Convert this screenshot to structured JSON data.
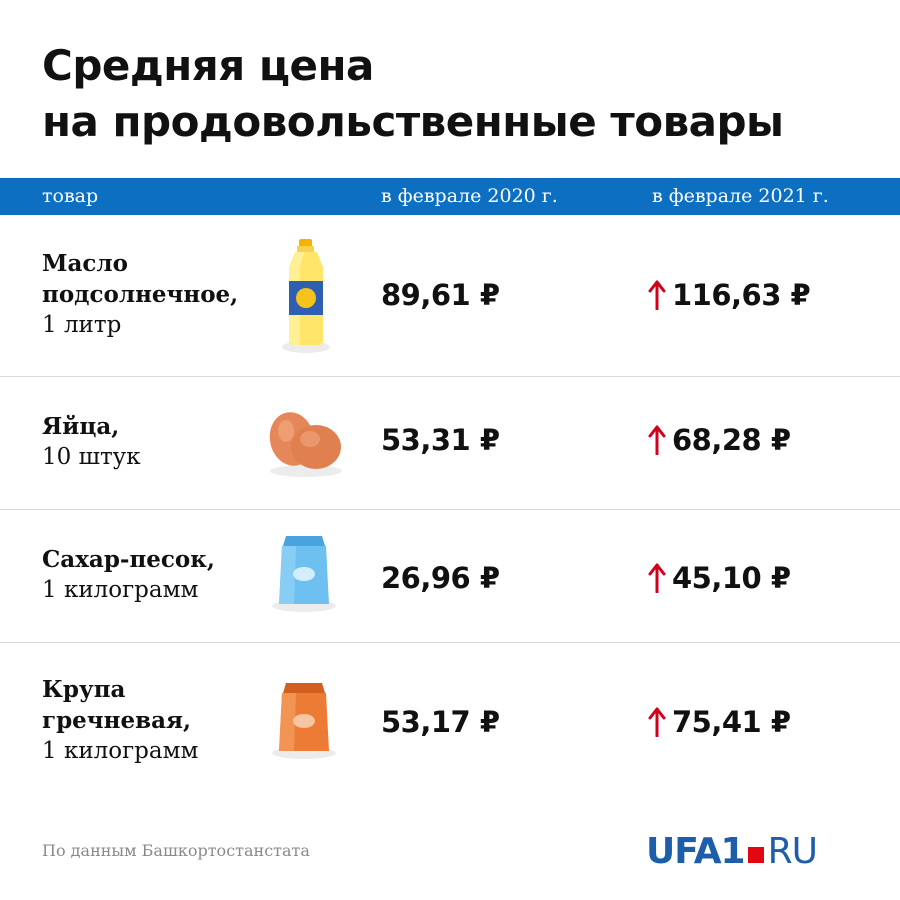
{
  "title": {
    "line1": "Средняя цена",
    "line2": "на продовольственные товары"
  },
  "header": {
    "item": "товар",
    "col_2020": "в феврале 2020 г.",
    "col_2021": "в феврале 2021 г."
  },
  "rows": [
    {
      "name_bold": [
        "Масло",
        "подсолнечное,"
      ],
      "name_regular": [
        "1 литр"
      ],
      "icon": "oil-bottle-icon",
      "price_2020": "89,61 ₽",
      "price_2021": "116,63 ₽"
    },
    {
      "name_bold": [
        "Яйца,"
      ],
      "name_regular": [
        "10 штук"
      ],
      "icon": "eggs-icon",
      "price_2020": "53,31 ₽",
      "price_2021": "68,28 ₽"
    },
    {
      "name_bold": [
        "Сахар-песок,"
      ],
      "name_regular": [
        "1 килограмм"
      ],
      "icon": "sugar-bag-icon",
      "price_2020": "26,96 ₽",
      "price_2021": "45,10 ₽"
    },
    {
      "name_bold": [
        "Крупа",
        "гречневая,"
      ],
      "name_regular": [
        "1 килограмм"
      ],
      "icon": "buckwheat-bag-icon",
      "price_2020": "53,17 ₽",
      "price_2021": "75,41 ₽"
    }
  ],
  "chart_data": {
    "type": "table",
    "title": "Средняя цена на продовольственные товары",
    "columns": [
      "товар",
      "в феврале 2020 г.",
      "в феврале 2021 г."
    ],
    "categories": [
      "Масло подсолнечное, 1 литр",
      "Яйца, 10 штук",
      "Сахар-песок, 1 килограмм",
      "Крупа гречневая, 1 килограмм"
    ],
    "series": [
      {
        "name": "в феврале 2020 г.",
        "values": [
          89.61,
          53.31,
          26.96,
          53.17
        ]
      },
      {
        "name": "в феврале 2021 г.",
        "values": [
          116.63,
          68.28,
          45.1,
          75.41
        ]
      }
    ],
    "unit": "₽",
    "trend_2021": [
      "up",
      "up",
      "up",
      "up"
    ]
  },
  "source": "По данным Башкортостанстата",
  "logo": {
    "part1": "UFA1",
    "part2": "RU"
  },
  "colors": {
    "header_bar": "#0d6fc2",
    "arrow_up": "#d0021b",
    "logo_blue": "#1c5ea8",
    "logo_red": "#e30613",
    "divider": "#d8d8d8"
  }
}
